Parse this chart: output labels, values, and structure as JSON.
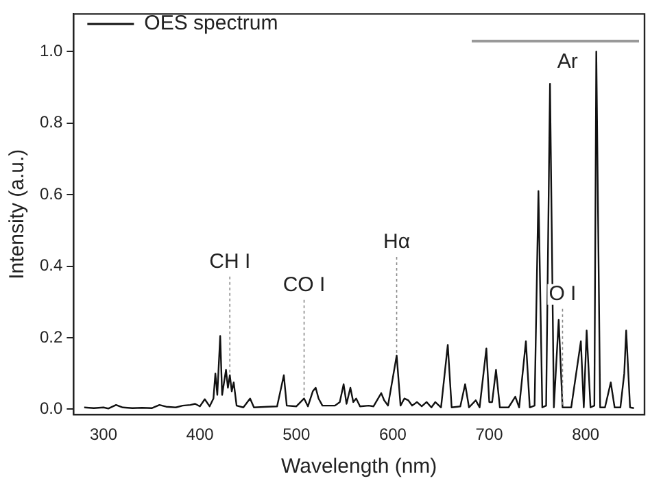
{
  "chart_data": {
    "type": "line",
    "xlabel": "Wavelength (nm)",
    "ylabel": "Intensity (a.u.)",
    "series": [
      {
        "name": "OES spectrum",
        "color": "#111111",
        "x": [
          280,
          290,
          300,
          305,
          313,
          320,
          330,
          340,
          350,
          358,
          365,
          375,
          382,
          390,
          395,
          400,
          405,
          410,
          414,
          416,
          418,
          421,
          423,
          427,
          429,
          431,
          433,
          435,
          438,
          445,
          452,
          456,
          470,
          480,
          487,
          490,
          500,
          508,
          512,
          517,
          520,
          523,
          527,
          540,
          545,
          549,
          552,
          556,
          559,
          562,
          566,
          575,
          580,
          588,
          591,
          595,
          604,
          608,
          612,
          616,
          620,
          625,
          630,
          635,
          640,
          644,
          650,
          657,
          661,
          670,
          675,
          679,
          686,
          690,
          697,
          700,
          703,
          707,
          711,
          720,
          727,
          731,
          738,
          742,
          747,
          751,
          755,
          759,
          763,
          767,
          772,
          776,
          785,
          795,
          798,
          801,
          805,
          809,
          811,
          815,
          820,
          826,
          830,
          836,
          840,
          842,
          846,
          850
        ],
        "values": [
          0.005,
          0.003,
          0.005,
          0.002,
          0.012,
          0.005,
          0.003,
          0.004,
          0.003,
          0.012,
          0.007,
          0.005,
          0.01,
          0.012,
          0.015,
          0.008,
          0.028,
          0.008,
          0.03,
          0.1,
          0.04,
          0.205,
          0.04,
          0.11,
          0.06,
          0.095,
          0.05,
          0.075,
          0.01,
          0.005,
          0.03,
          0.005,
          0.007,
          0.008,
          0.095,
          0.01,
          0.008,
          0.03,
          0.008,
          0.05,
          0.06,
          0.03,
          0.01,
          0.01,
          0.02,
          0.07,
          0.015,
          0.06,
          0.02,
          0.03,
          0.008,
          0.01,
          0.008,
          0.045,
          0.025,
          0.01,
          0.15,
          0.01,
          0.03,
          0.025,
          0.01,
          0.02,
          0.008,
          0.02,
          0.005,
          0.02,
          0.005,
          0.18,
          0.005,
          0.008,
          0.07,
          0.005,
          0.025,
          0.005,
          0.17,
          0.02,
          0.02,
          0.11,
          0.005,
          0.005,
          0.035,
          0.005,
          0.19,
          0.005,
          0.01,
          0.61,
          0.005,
          0.01,
          0.91,
          0.005,
          0.25,
          0.005,
          0.005,
          0.19,
          0.005,
          0.22,
          0.005,
          0.01,
          1.0,
          0.005,
          0.005,
          0.075,
          0.005,
          0.005,
          0.1,
          0.22,
          0.005,
          0.003
        ]
      }
    ],
    "xlim": [
      269,
      861
    ],
    "xticks": [
      300,
      400,
      500,
      600,
      700,
      800
    ],
    "ylim": [
      -0.015,
      1.105
    ],
    "yticks": [
      {
        "value": 0,
        "label": "0.0"
      },
      {
        "value": 0.2,
        "label": "0.2"
      },
      {
        "value": 0.4,
        "label": "0.4"
      },
      {
        "value": 0.6,
        "label": "0.6"
      },
      {
        "value": 0.8,
        "label": "0.8"
      },
      {
        "value": 1,
        "label": "1.0"
      }
    ],
    "annotations": [
      {
        "text": "CH I",
        "x": 431,
        "y": 0.095
      },
      {
        "text": "CO I",
        "x": 508,
        "y": 0.03
      },
      {
        "text": "Hα",
        "x": 604,
        "y": 0.15
      },
      {
        "text": "O I",
        "x": 776,
        "y": 0.005
      },
      {
        "text": "Ar",
        "x": 811,
        "y": 1.0
      }
    ],
    "legend": "top left",
    "marker": "none",
    "line_style": "solid",
    "grid": false
  }
}
